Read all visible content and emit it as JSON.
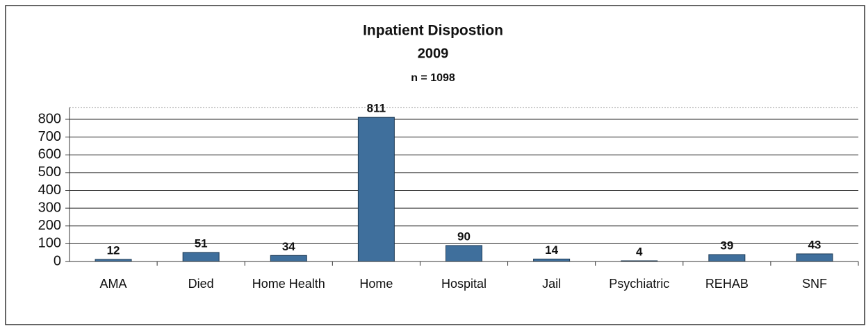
{
  "chart_data": {
    "type": "bar",
    "title": "Inpatient Dispostion",
    "subtitle": "2009",
    "annotation": "n = 1098",
    "categories": [
      "AMA",
      "Died",
      "Home Health",
      "Home",
      "Hospital",
      "Jail",
      "Psychiatric",
      "REHAB",
      "SNF"
    ],
    "values": [
      12,
      51,
      34,
      811,
      90,
      14,
      4,
      39,
      43
    ],
    "color": "#3f6f9c",
    "ylim": [
      0,
      800
    ],
    "yticks": [
      0,
      100,
      200,
      300,
      400,
      500,
      600,
      700,
      800
    ],
    "grid": true
  }
}
